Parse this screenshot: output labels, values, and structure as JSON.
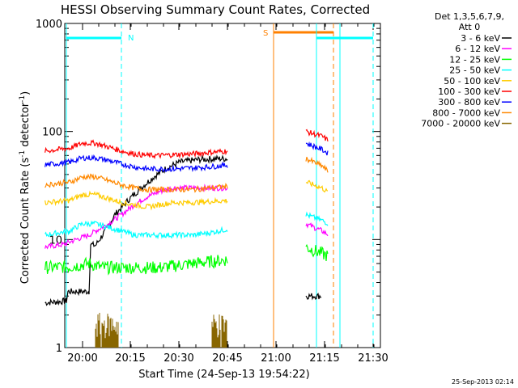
{
  "chart_data": {
    "type": "line",
    "title": "HESSI Observing Summary Count Rates, Corrected",
    "xlabel": "Start Time (24-Sep-13 19:54:22)",
    "ylabel_main": "Corrected Count Rate (s",
    "ylabel_sup1": "-1",
    "ylabel_mid": " detector",
    "ylabel_sup2": "-1",
    "ylabel_end": ")",
    "yscale": "log",
    "ylim": [
      1,
      1000
    ],
    "xlim_minutes": [
      -5.63,
      31.8
    ],
    "x_ticks": [
      "20:00",
      "20:15",
      "20:30",
      "20:45",
      "21:00",
      "21:15",
      "21:30"
    ],
    "y_ticks": [
      "1",
      "10",
      "100",
      "1000"
    ],
    "legend_header": [
      "Det 1,3,5,6,7,9,",
      "Att 0"
    ],
    "legend_position": "right",
    "timestamp": "25-Sep-2013 02:14",
    "flag_labels": {
      "night": "N",
      "saa": "S"
    },
    "series": [
      {
        "name": "3 - 6 keV",
        "color": "#000000",
        "points": [
          [
            -5.6,
            2.6
          ],
          [
            1,
            2.7
          ],
          [
            1.5,
            3.3
          ],
          [
            8,
            3.3
          ],
          [
            8.5,
            9
          ],
          [
            10,
            8.8
          ],
          [
            13,
            12
          ],
          [
            16,
            17
          ],
          [
            20,
            23
          ],
          [
            24,
            30
          ],
          [
            28,
            38
          ],
          [
            32,
            46
          ],
          [
            36,
            52
          ],
          [
            42,
            55
          ],
          [
            48,
            56
          ],
          [
            51,
            56
          ]
        ],
        "points2": [
          [
            75,
            3
          ],
          [
            80,
            3
          ]
        ]
      },
      {
        "name": "6 - 12 keV",
        "color": "#ff00ff",
        "points": [
          [
            -5.6,
            8.5
          ],
          [
            0,
            9
          ],
          [
            4,
            10
          ],
          [
            8,
            11
          ],
          [
            10,
            12
          ],
          [
            14,
            14
          ],
          [
            18,
            17
          ],
          [
            22,
            21
          ],
          [
            26,
            25
          ],
          [
            30,
            28
          ],
          [
            34,
            30
          ],
          [
            38,
            30
          ],
          [
            42,
            30
          ],
          [
            48,
            30
          ],
          [
            51,
            30
          ]
        ],
        "points2": [
          [
            75,
            14
          ],
          [
            80,
            12
          ],
          [
            82,
            11
          ]
        ]
      },
      {
        "name": "12 - 25 keV",
        "color": "#00ff00",
        "points": [
          [
            -5.6,
            5.5
          ],
          [
            2,
            5.6
          ],
          [
            8,
            6
          ],
          [
            12,
            5.5
          ],
          [
            20,
            5.5
          ],
          [
            30,
            5.5
          ],
          [
            40,
            6
          ],
          [
            51,
            6.5
          ]
        ],
        "points2": [
          [
            75,
            8.5
          ],
          [
            82,
            7
          ]
        ]
      },
      {
        "name": "25 - 50 keV",
        "color": "#00ffff",
        "points": [
          [
            -5.6,
            11
          ],
          [
            2,
            12
          ],
          [
            6,
            14
          ],
          [
            10,
            14
          ],
          [
            14,
            13
          ],
          [
            18,
            12
          ],
          [
            22,
            11
          ],
          [
            26,
            11
          ],
          [
            30,
            11
          ],
          [
            34,
            11
          ],
          [
            40,
            11
          ],
          [
            45,
            11.5
          ],
          [
            51,
            12.5
          ]
        ],
        "points2": [
          [
            75,
            17
          ],
          [
            80,
            15
          ],
          [
            82,
            14
          ]
        ]
      },
      {
        "name": "50 - 100 keV",
        "color": "#ffcc00",
        "points": [
          [
            -5.6,
            22
          ],
          [
            2,
            23
          ],
          [
            6,
            26
          ],
          [
            10,
            26
          ],
          [
            14,
            24
          ],
          [
            18,
            22
          ],
          [
            22,
            21
          ],
          [
            26,
            20
          ],
          [
            30,
            21
          ],
          [
            34,
            22
          ],
          [
            40,
            22
          ],
          [
            45,
            22.5
          ],
          [
            51,
            23
          ]
        ],
        "points2": [
          [
            75,
            34
          ],
          [
            80,
            30
          ],
          [
            82,
            27
          ]
        ]
      },
      {
        "name": "100 - 300 keV",
        "color": "#ff0000",
        "points": [
          [
            -5.6,
            66
          ],
          [
            2,
            70
          ],
          [
            6,
            78
          ],
          [
            10,
            78
          ],
          [
            14,
            72
          ],
          [
            18,
            66
          ],
          [
            22,
            62
          ],
          [
            26,
            60
          ],
          [
            30,
            60
          ],
          [
            34,
            61
          ],
          [
            40,
            62
          ],
          [
            45,
            64
          ],
          [
            51,
            66
          ]
        ],
        "points2": [
          [
            75,
            100
          ],
          [
            80,
            90
          ],
          [
            82,
            82
          ]
        ]
      },
      {
        "name": "300 - 800 keV",
        "color": "#0000ff",
        "points": [
          [
            -5.6,
            49
          ],
          [
            2,
            52
          ],
          [
            6,
            57
          ],
          [
            10,
            57
          ],
          [
            14,
            54
          ],
          [
            18,
            50
          ],
          [
            22,
            47
          ],
          [
            26,
            45
          ],
          [
            30,
            45
          ],
          [
            34,
            45
          ],
          [
            40,
            46
          ],
          [
            45,
            47
          ],
          [
            51,
            49
          ]
        ],
        "points2": [
          [
            75,
            78
          ],
          [
            80,
            68
          ],
          [
            82,
            62
          ]
        ]
      },
      {
        "name": "800 - 7000 keV",
        "color": "#ff8800",
        "points": [
          [
            -5.6,
            32
          ],
          [
            2,
            34
          ],
          [
            6,
            38
          ],
          [
            10,
            38
          ],
          [
            14,
            35
          ],
          [
            18,
            32
          ],
          [
            22,
            30
          ],
          [
            26,
            29
          ],
          [
            30,
            29
          ],
          [
            34,
            29
          ],
          [
            40,
            29
          ],
          [
            45,
            30
          ],
          [
            51,
            31
          ]
        ],
        "points2": [
          [
            75,
            56
          ],
          [
            80,
            48
          ],
          [
            82,
            42
          ]
        ]
      },
      {
        "name": "7000 - 20000 keV",
        "color": "#886600",
        "points": [
          [
            11.5,
            1.6
          ],
          [
            13,
            1.3
          ],
          [
            14.5,
            1.8
          ],
          [
            16,
            1.2
          ],
          [
            17,
            1.5
          ]
        ],
        "points2": [
          [
            48,
            1.4
          ],
          [
            49,
            1.8
          ],
          [
            50,
            1.2
          ]
        ]
      }
    ],
    "night_intervals": [
      [
        -6.0,
        8.6
      ],
      [
        75.0,
        80.0
      ]
    ],
    "saa_interval": [
      55.0,
      70.5
    ],
    "saa_dashed_end": 71.7,
    "cyan_vlines": [
      -5.6,
      8.7,
      63.6,
      75.4,
      81.4
    ],
    "orange_vlines": [
      54.8,
      71.7
    ]
  }
}
